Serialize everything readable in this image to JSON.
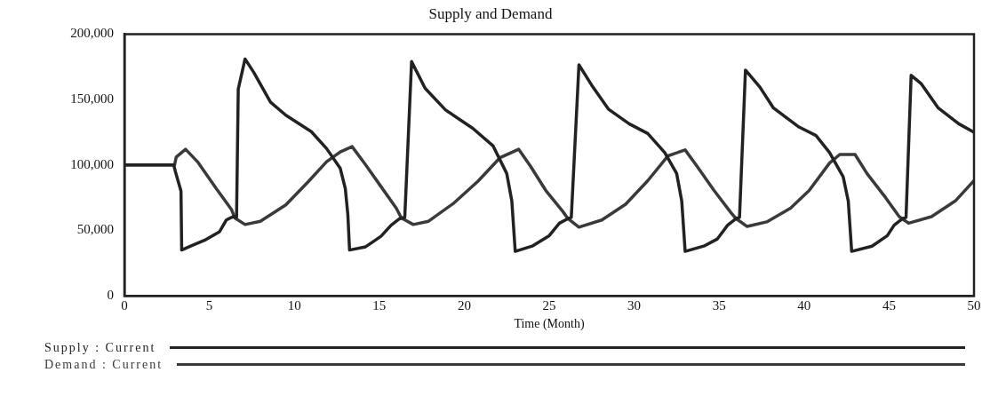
{
  "chart_data": {
    "type": "line",
    "title": "Supply and Demand",
    "xlabel": "Time (Month)",
    "xlim": [
      0,
      50
    ],
    "xticks": [
      0,
      5,
      10,
      15,
      20,
      25,
      30,
      35,
      40,
      45,
      50
    ],
    "ylim": [
      0,
      200000
    ],
    "yticks": [
      {
        "value": 0,
        "label": "0"
      },
      {
        "value": 50000,
        "label": "50,000"
      },
      {
        "value": 100000,
        "label": "100,000"
      },
      {
        "value": 150000,
        "label": "150,000"
      },
      {
        "value": 200000,
        "label": "200,000"
      }
    ],
    "grid": false,
    "legend": "bottom",
    "marker": "none",
    "line_style": "solid",
    "series": [
      {
        "name": "Supply : Current",
        "color": "#222222",
        "x": [
          0,
          2.9,
          3.0,
          3.33,
          3.37,
          3.9,
          4.8,
          5.6,
          6.0,
          6.4,
          6.6,
          6.7,
          7.1,
          7.6,
          8.6,
          9.5,
          11.0,
          11.9,
          12.7,
          13.0,
          13.15,
          13.25,
          14.2,
          15.1,
          15.7,
          16.2,
          16.5,
          16.9,
          17.7,
          18.9,
          20.5,
          21.7,
          22.5,
          22.8,
          23.0,
          24.0,
          25.0,
          25.6,
          26.1,
          26.3,
          26.75,
          27.5,
          28.5,
          29.7,
          30.8,
          31.8,
          32.5,
          32.8,
          33.0,
          34.1,
          34.9,
          35.5,
          36.0,
          36.2,
          36.55,
          37.4,
          38.2,
          39.7,
          40.7,
          41.5,
          42.3,
          42.6,
          42.8,
          44.0,
          44.9,
          45.3,
          45.8,
          46.0,
          46.3,
          46.9,
          47.9,
          49.1,
          50
        ],
        "values": [
          100000,
          100000,
          95000,
          80000,
          35000,
          38000,
          43000,
          49000,
          58000,
          60500,
          60000,
          158000,
          181000,
          171000,
          148000,
          138000,
          125500,
          112500,
          97500,
          82000,
          62000,
          35000,
          37500,
          45500,
          54000,
          59000,
          60000,
          179000,
          158500,
          142000,
          128000,
          114500,
          93500,
          72500,
          34000,
          38000,
          46000,
          55500,
          59000,
          60000,
          176500,
          161000,
          142500,
          131500,
          124000,
          109500,
          93500,
          72500,
          34000,
          38000,
          43500,
          54000,
          59000,
          60000,
          172500,
          159500,
          143500,
          129000,
          122500,
          109500,
          91000,
          72500,
          34000,
          38000,
          46000,
          54000,
          59000,
          60000,
          168500,
          162000,
          143500,
          131500,
          125000
        ]
      },
      {
        "name": "Demand : Current",
        "color": "#3a3a3a",
        "x": [
          0,
          2.95,
          3.05,
          3.6,
          4.3,
          5.4,
          6.3,
          6.5,
          7.1,
          8.0,
          9.5,
          10.8,
          11.9,
          12.7,
          13.4,
          14.2,
          15.1,
          16.0,
          16.3,
          17.0,
          17.9,
          19.4,
          20.8,
          22.1,
          23.2,
          23.9,
          24.8,
          25.8,
          26.1,
          26.75,
          28.1,
          29.5,
          30.8,
          32.0,
          33.0,
          33.7,
          34.7,
          35.7,
          36.0,
          36.65,
          37.8,
          39.2,
          40.3,
          41.5,
          42.1,
          43.0,
          43.7,
          44.8,
          45.6,
          46.15,
          47.5,
          48.9,
          50
        ],
        "values": [
          100000,
          100000,
          106000,
          112000,
          102500,
          82000,
          66000,
          59500,
          54500,
          57000,
          69500,
          87000,
          102500,
          110000,
          114000,
          100000,
          83500,
          67000,
          59500,
          54500,
          57000,
          71000,
          87500,
          105500,
          112000,
          99000,
          80500,
          64500,
          59000,
          52500,
          58000,
          70000,
          88000,
          107000,
          111500,
          99000,
          80500,
          63500,
          59000,
          53000,
          56500,
          67000,
          80500,
          101500,
          108000,
          108000,
          93500,
          75000,
          60500,
          55500,
          60500,
          72500,
          88000
        ]
      }
    ]
  }
}
